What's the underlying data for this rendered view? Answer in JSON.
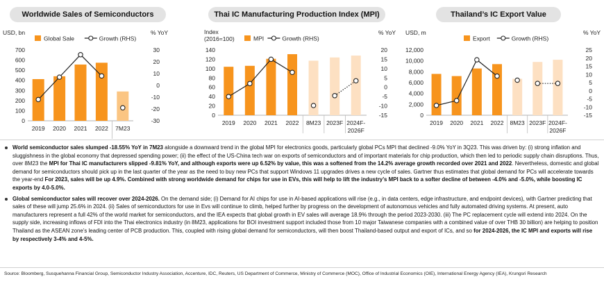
{
  "chart_data": [
    {
      "type": "bar+line",
      "title": "Worldwide Sales of Semiconductors",
      "left_axis_title": "USD, bn",
      "right_axis_title": "% YoY",
      "categories": [
        "2019",
        "2020",
        "2021",
        "2022",
        "7M23"
      ],
      "left_ticks": [
        "0",
        "100",
        "200",
        "300",
        "400",
        "500",
        "600",
        "700"
      ],
      "right_ticks": [
        "-30",
        "-20",
        "-10",
        "0",
        "10",
        "20",
        "30"
      ],
      "ylim_left": [
        0,
        700
      ],
      "ylim_right": [
        -30,
        30
      ],
      "series": [
        {
          "name": "Global Sale",
          "kind": "bar",
          "values": [
            412,
            440,
            556,
            574,
            290
          ],
          "colors": [
            "#f7941d",
            "#f7941d",
            "#f7941d",
            "#f7941d",
            "#fbc582"
          ]
        },
        {
          "name": "Growth (RHS)",
          "kind": "line",
          "values": [
            -12,
            7,
            26,
            8,
            -19
          ],
          "solid_to": 3,
          "isolated": [
            4
          ]
        }
      ]
    },
    {
      "type": "bar+line",
      "title": "Thai IC Manufacturing Production Index (MPI)",
      "left_axis_title_1": "Index",
      "left_axis_title_2": "(2016=100)",
      "right_axis_title": "% YoY",
      "categories": [
        "2019",
        "2020",
        "2021",
        "2022",
        "8M23",
        "2023F",
        "2024F-2026F"
      ],
      "left_ticks": [
        "0",
        "20",
        "40",
        "60",
        "80",
        "100",
        "120",
        "140"
      ],
      "right_ticks": [
        "-15",
        "-10",
        "-5",
        "0",
        "5",
        "10",
        "15",
        "20"
      ],
      "ylim_left": [
        0,
        140
      ],
      "ylim_right": [
        -15,
        20
      ],
      "series": [
        {
          "name": "MPI",
          "kind": "bar",
          "values": [
            104,
            106,
            121,
            131,
            117,
            124,
            128
          ],
          "colors": [
            "#f7941d",
            "#f7941d",
            "#f7941d",
            "#f7941d",
            "#fde0c2",
            "#fde0c2",
            "#fde0c2"
          ]
        },
        {
          "name": "Growth (RHS)",
          "kind": "line",
          "values": [
            -5,
            2,
            15,
            8,
            -9.8,
            -4.5,
            3.5
          ],
          "solid_to": 3,
          "isolated": [
            4
          ],
          "dotted_from": 5
        }
      ]
    },
    {
      "type": "bar+line",
      "title": "Thailand’s IC Export Value",
      "left_axis_title": "USD, m",
      "right_axis_title": "% YoY",
      "categories": [
        "2019",
        "2020",
        "2021",
        "2022",
        "8M23",
        "2023F",
        "2024F-2026F"
      ],
      "left_ticks": [
        "0",
        "2,000",
        "4,000",
        "6,000",
        "8,000",
        "10,000",
        "12,000"
      ],
      "right_ticks": [
        "-15",
        "-10",
        "-5",
        "0",
        "5",
        "10",
        "15",
        "20",
        "25"
      ],
      "ylim_left": [
        0,
        12000
      ],
      "ylim_right": [
        -15,
        25
      ],
      "series": [
        {
          "name": "Export",
          "kind": "bar",
          "values": [
            7600,
            7200,
            8600,
            9400,
            6700,
            9800,
            10200
          ],
          "colors": [
            "#f7941d",
            "#f7941d",
            "#f7941d",
            "#f7941d",
            "#fde0c2",
            "#fde0c2",
            "#fde0c2"
          ]
        },
        {
          "name": "Growth (RHS)",
          "kind": "line",
          "values": [
            -9,
            -6,
            19,
            9,
            6.5,
            4.5,
            4.5
          ],
          "solid_to": 3,
          "isolated": [
            4
          ],
          "dotted_from": 5
        }
      ]
    }
  ],
  "bullets": [
    [
      {
        "t": "World semiconductor sales slumped -18.55% YoY in 7M23",
        "b": true
      },
      {
        "t": " alongside a downward trend in the global MPI for electronics goods, particularly global PCs MPI that declined -9.0% YoY in 3Q23. This was driven by: (i) strong inflation and sluggishness in the global economy that depressed spending power; (ii) the effect of the US-China tech war on exports of semiconductors and of important materials for chip production, which then led to periodic supply chain disruptions. Thus, over 8M23 the ",
        "b": false
      },
      {
        "t": "MPI for Thai IC manufacturers slipped -9.81% YoY, and although exports were up 6.52% by value, this was a softened from the 14.2% average growth recorded over 2021 and 2022",
        "b": true
      },
      {
        "t": ". Nevertheless, domestic and global demand for semiconductors should pick up in the last quarter of the year as the need to buy new PCs that support Windows 11 upgrades drives a new cycle of sales. Gartner thus estimates that global demand for PCs will accelerate towards the year-end ",
        "b": false
      },
      {
        "t": "For 2023, sales will be up 4.9%. Combined with strong worldwide demand for chips for use in EVs, this will help to lift the industry’s MPI back to a softer decline of between -4.0% and -5.0%, while boosting IC exports by 4.0-5.0%.",
        "b": true
      }
    ],
    [
      {
        "t": "Global semiconductor sales will recover over 2024-2026.",
        "b": true
      },
      {
        "t": " On the demand side; (i) Demand for AI chips for use in AI-based applications will rise (e.g., in data centers, edge infrastructure, and endpoint devices), with Gartner predicting that sales of these will jump 25.6% in 2024. (ii) Sales of semiconductors for use in Evs will continue to climb, helped further by progress on the development of autonomous vehicles and fully automated driving systems. At present, auto manufacturers represent a full 42% of the world market for semiconductors, and the IEA expects that global growth in EV sales will average 18.9% through the period 2023-2030. (iii) The PC replacement cycle will extend into 2024. On the supply side, increasing inflows of FDI into the Thai electronics industry (in 8M23, applications for BOI investment support included those from 10 major Taiwanese companies with a combined value of over THB 30 billion) are helping to position Thailand as the ASEAN zone’s leading center of PCB production. This, coupled with rising global demand for semiconductors, will then boost Thailand-based output and export of ICs, and so ",
        "b": false
      },
      {
        "t": "for 2024-2026, the IC MPI and exports will rise by respectively 3-4% and 4-5%.",
        "b": true
      }
    ]
  ],
  "source": "Source: Bloomberg, Susquehanna Financial Group, Semiconductor Industry Association, Accenture, IDC, Reuters, US Department of Commerce, Ministry of Commerce (MOC), Office of Industrial Economics (OIE), International Energy Agency (IEA), Krungsri Research"
}
